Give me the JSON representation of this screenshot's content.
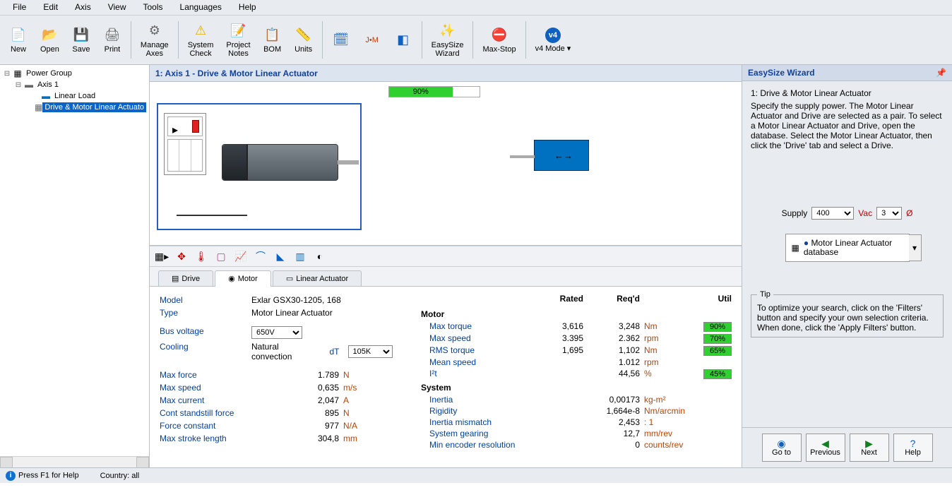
{
  "menubar": [
    "File",
    "Edit",
    "Axis",
    "View",
    "Tools",
    "Languages",
    "Help"
  ],
  "toolbar": [
    {
      "label": "New",
      "icon": "📄",
      "color": "#888"
    },
    {
      "label": "Open",
      "icon": "📂",
      "color": "#d08000"
    },
    {
      "label": "Save",
      "icon": "💾",
      "color": "#1060c0"
    },
    {
      "label": "Print",
      "icon": "🖨",
      "color": "#666"
    },
    {
      "sep": true
    },
    {
      "label": "Manage\nAxes",
      "icon": "⚙",
      "color": "#666"
    },
    {
      "sep": true
    },
    {
      "label": "System\nCheck",
      "icon": "⚠",
      "color": "#e0b000"
    },
    {
      "label": "Project\nNotes",
      "icon": "📝",
      "color": "#1060c0"
    },
    {
      "label": "BOM",
      "icon": "📋",
      "color": "#1060c0"
    },
    {
      "label": "Units",
      "icon": "📏",
      "color": "#c08000"
    },
    {
      "sep": true
    },
    {
      "label": "",
      "icon": "🗓",
      "color": "#1060c0"
    },
    {
      "label": "",
      "icon": "J•M",
      "color": "#c04000",
      "small": true
    },
    {
      "label": "",
      "icon": "◧",
      "color": "#1060c0"
    },
    {
      "sep": true
    },
    {
      "label": "EasySize\nWizard",
      "icon": "✨",
      "color": "#666"
    },
    {
      "sep": true
    },
    {
      "label": "Max-Stop",
      "icon": "⛔",
      "color": "#c00000"
    },
    {
      "sep": true
    },
    {
      "label": "v4 Mode ▾",
      "icon": "v4",
      "color": "#fff",
      "bg": "#1060c0"
    }
  ],
  "tree": {
    "root": "Power Group",
    "axis": "Axis 1",
    "load": "Linear Load",
    "drive": "Drive & Motor Linear Actuato"
  },
  "center": {
    "title": "1: Axis 1 - Drive & Motor Linear Actuator",
    "progress": {
      "value": 90,
      "label": "90%",
      "width_pct": 70
    }
  },
  "tabs": [
    {
      "label": "Drive",
      "icon": "▤"
    },
    {
      "label": "Motor",
      "icon": "◉",
      "active": true
    },
    {
      "label": "Linear Actuator",
      "icon": "▭"
    }
  ],
  "details_left": {
    "model_label": "Model",
    "model": "Exlar GSX30-1205, 168",
    "type_label": "Type",
    "type": "Motor Linear Actuator",
    "busv_label": "Bus voltage",
    "busv": "650V",
    "cooling_label": "Cooling",
    "cooling": "Natural convection",
    "dt_label": "dT",
    "dt": "105K",
    "rows": [
      {
        "k": "Max force",
        "n": "1.789",
        "u": "N"
      },
      {
        "k": "Max speed",
        "n": "0,635",
        "u": "m/s"
      },
      {
        "k": "Max current",
        "n": "2,047",
        "u": "A"
      },
      {
        "k": "Cont standstill force",
        "n": "895",
        "u": "N"
      },
      {
        "k": "Force constant",
        "n": "977",
        "u": "N/A"
      },
      {
        "k": "Max stroke length",
        "n": "304,8",
        "u": "mm"
      }
    ]
  },
  "details_right": {
    "hdr_rated": "Rated",
    "hdr_req": "Req'd",
    "hdr_util": "Util",
    "motor_sec": "Motor",
    "motor_rows": [
      {
        "l": "Max torque",
        "r": "3,616",
        "q": "3,248",
        "u": "Nm",
        "p": "90%"
      },
      {
        "l": "Max speed",
        "r": "3.395",
        "q": "2.362",
        "u": "rpm",
        "p": "70%"
      },
      {
        "l": "RMS torque",
        "r": "1,695",
        "q": "1,102",
        "u": "Nm",
        "p": "65%"
      },
      {
        "l": "Mean speed",
        "r": "",
        "q": "1.012",
        "u": "rpm",
        "p": ""
      },
      {
        "l": "I²t",
        "r": "",
        "q": "44,56",
        "u": "%",
        "p": "45%"
      }
    ],
    "system_sec": "System",
    "system_rows": [
      {
        "l": "Inertia",
        "r": "",
        "q": "0,00173",
        "u": "kg-m²",
        "p": ""
      },
      {
        "l": "Rigidity",
        "r": "",
        "q": "1,664e-8",
        "u": "Nm/arcmin",
        "p": ""
      },
      {
        "l": "Inertia mismatch",
        "r": "",
        "q": "2,453",
        "u": ": 1",
        "p": ""
      },
      {
        "l": "System gearing",
        "r": "",
        "q": "12,7",
        "u": "mm/rev",
        "p": ""
      },
      {
        "l": "Min encoder resolution",
        "r": "",
        "q": "0",
        "u": "counts/rev",
        "p": ""
      }
    ]
  },
  "wizard": {
    "title": "EasySize Wizard",
    "step_title": "1: Drive & Motor Linear Actuator",
    "desc": "Specify the supply power. The Motor Linear Actuator and Drive are selected as a pair. To select a Motor Linear Actuator and Drive, open the database. Select the Motor Linear Actuator, then click the 'Drive' tab and select a Drive.",
    "supply_label": "Supply",
    "supply_value": "400",
    "vac_label": "Vac",
    "vac_value": "3",
    "phase": "Ø",
    "db_label1": "Motor Linear Actuator",
    "db_label2": "database",
    "tip_title": "Tip",
    "tip_text": "To optimize your search, click on the 'Filters' button and specify your own selection criteria.  When done, click the 'Apply Filters' button.",
    "nav": [
      {
        "g": "◉",
        "lbl": "Go to",
        "cls": "gb"
      },
      {
        "g": "◀",
        "lbl": "Previous"
      },
      {
        "g": "▶",
        "lbl": "Next"
      },
      {
        "g": "?",
        "lbl": "Help",
        "cls": "gb"
      }
    ]
  },
  "status": {
    "help": "Press F1 for Help",
    "country": "Country: all"
  }
}
